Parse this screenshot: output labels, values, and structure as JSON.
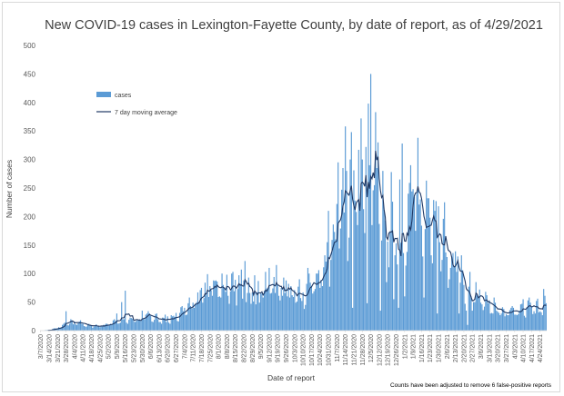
{
  "chart_data": {
    "type": "bar",
    "title": "New COVID-19 cases in Lexington-Fayette County, by date of report, as of 4/29/2021",
    "xlabel": "Date of report",
    "ylabel": "Number of cases",
    "ylim": [
      0,
      500
    ],
    "yticks": [
      0,
      50,
      100,
      150,
      200,
      250,
      300,
      350,
      400,
      450,
      500
    ],
    "grid": false,
    "legend_position": "upper-left",
    "note": "Counts have been adjusted to remove 6 false-positive reports",
    "date_start": "3/7/2020",
    "date_end": "4/29/2021",
    "x_tick_labels": [
      "3/7/2020",
      "3/14/2020",
      "3/21/2020",
      "3/28/2020",
      "4/4/2020",
      "4/11/2020",
      "4/18/2020",
      "4/25/2020",
      "5/2/2020",
      "5/9/2020",
      "5/16/2020",
      "5/23/2020",
      "5/30/2020",
      "6/6/2020",
      "6/13/2020",
      "6/20/2020",
      "6/27/2020",
      "7/4/2020",
      "7/11/2020",
      "7/18/2020",
      "7/25/2020",
      "8/1/2020",
      "8/8/2020",
      "8/15/2020",
      "8/22/2020",
      "8/29/2020",
      "9/5/2020",
      "9/12/2020",
      "9/19/2020",
      "9/26/2020",
      "10/3/2020",
      "10/10/2020",
      "10/17/2020",
      "10/24/2020",
      "10/31/2020",
      "11/7/2020",
      "11/14/2020",
      "11/21/2020",
      "11/28/2020",
      "12/5/2020",
      "12/12/2020",
      "12/19/2020",
      "12/26/2020",
      "1/2/2021",
      "1/9/2021",
      "1/16/2021",
      "1/23/2021",
      "1/30/2021",
      "2/6/2021",
      "2/13/2021",
      "2/20/2021",
      "2/27/2021",
      "3/6/2021",
      "3/13/2021",
      "3/20/2021",
      "3/27/2021",
      "4/3/2021",
      "4/10/2021",
      "4/17/2021",
      "4/24/2021"
    ],
    "series": [
      {
        "name": "cases",
        "kind": "bar",
        "color": "#5b9bd5",
        "anchors": [
          [
            0,
            0
          ],
          [
            7,
            1
          ],
          [
            14,
            5
          ],
          [
            21,
            12
          ],
          [
            28,
            15
          ],
          [
            35,
            11
          ],
          [
            42,
            8
          ],
          [
            49,
            8
          ],
          [
            56,
            12
          ],
          [
            63,
            17
          ],
          [
            70,
            16
          ],
          [
            77,
            17
          ],
          [
            84,
            23
          ],
          [
            91,
            24
          ],
          [
            98,
            21
          ],
          [
            105,
            20
          ],
          [
            112,
            25
          ],
          [
            119,
            33
          ],
          [
            126,
            44
          ],
          [
            133,
            64
          ],
          [
            140,
            75
          ],
          [
            147,
            70
          ],
          [
            154,
            83
          ],
          [
            161,
            81
          ],
          [
            168,
            71
          ],
          [
            175,
            58
          ],
          [
            182,
            65
          ],
          [
            189,
            86
          ],
          [
            196,
            72
          ],
          [
            203,
            69
          ],
          [
            210,
            62
          ],
          [
            217,
            67
          ],
          [
            224,
            82
          ],
          [
            231,
            92
          ],
          [
            238,
            130
          ],
          [
            245,
            175
          ],
          [
            252,
            215
          ],
          [
            259,
            228
          ],
          [
            266,
            245
          ],
          [
            273,
            280
          ],
          [
            280,
            238
          ],
          [
            287,
            198
          ],
          [
            294,
            160
          ],
          [
            301,
            170
          ],
          [
            308,
            257
          ],
          [
            315,
            222
          ],
          [
            322,
            195
          ],
          [
            329,
            186
          ],
          [
            336,
            148
          ],
          [
            343,
            112
          ],
          [
            350,
            86
          ],
          [
            357,
            72
          ],
          [
            364,
            58
          ],
          [
            371,
            42
          ],
          [
            378,
            38
          ],
          [
            385,
            33
          ],
          [
            392,
            36
          ],
          [
            399,
            38
          ],
          [
            406,
            41
          ],
          [
            413,
            38
          ],
          [
            418,
            41
          ]
        ],
        "spikes": [
          [
            21,
            34
          ],
          [
            63,
            30
          ],
          [
            67,
            50
          ],
          [
            70,
            70
          ],
          [
            84,
            35
          ],
          [
            133,
            75
          ],
          [
            150,
            100
          ],
          [
            169,
            122
          ],
          [
            177,
            97
          ],
          [
            186,
            103
          ],
          [
            195,
            115
          ],
          [
            205,
            82
          ],
          [
            222,
            100
          ],
          [
            235,
            132
          ],
          [
            238,
            210
          ],
          [
            244,
            160
          ],
          [
            246,
            295
          ],
          [
            252,
            358
          ],
          [
            253,
            280
          ],
          [
            257,
            348
          ],
          [
            260,
            228
          ],
          [
            265,
            372
          ],
          [
            266,
            300
          ],
          [
            269,
            322
          ],
          [
            272,
            290
          ],
          [
            273,
            450
          ],
          [
            276,
            255
          ],
          [
            278,
            285
          ],
          [
            279,
            330
          ],
          [
            286,
            85
          ],
          [
            290,
            278
          ],
          [
            297,
            265
          ],
          [
            299,
            328
          ],
          [
            304,
            240
          ],
          [
            308,
            248
          ],
          [
            314,
            230
          ],
          [
            330,
            155
          ],
          [
            334,
            225
          ],
          [
            345,
            130
          ],
          [
            360,
            85
          ],
          [
            399,
            55
          ],
          [
            404,
            58
          ],
          [
            410,
            52
          ],
          [
            416,
            73
          ]
        ],
        "dips": [
          [
            258,
            40
          ],
          [
            270,
            48
          ],
          [
            281,
            35
          ],
          [
            292,
            55
          ],
          [
            296,
            40
          ],
          [
            301,
            60
          ],
          [
            317,
            58
          ],
          [
            328,
            30
          ],
          [
            337,
            75
          ],
          [
            346,
            30
          ],
          [
            352,
            35
          ],
          [
            353,
            10
          ],
          [
            357,
            35
          ]
        ]
      },
      {
        "name": "7 day moving average",
        "kind": "line",
        "color": "#1f3864"
      }
    ]
  }
}
